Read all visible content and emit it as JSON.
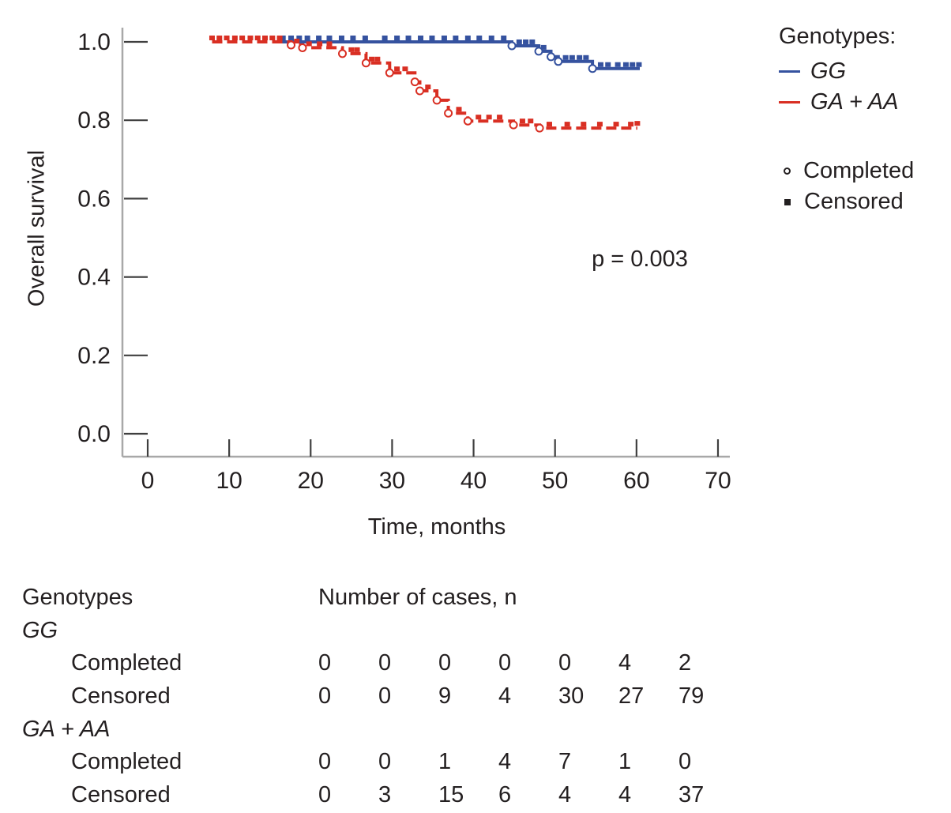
{
  "chart_data": {
    "type": "line",
    "subtype": "kaplan-meier-step",
    "xlabel": "Time, months",
    "ylabel": "Overall survival",
    "annotation": "p = 0.003",
    "xlim": [
      0,
      70
    ],
    "ylim": [
      0.0,
      1.0
    ],
    "xticks": [
      0,
      10,
      20,
      30,
      40,
      50,
      60,
      70
    ],
    "yticks": [
      0.0,
      0.2,
      0.4,
      0.6,
      0.8,
      1.0
    ],
    "grid": false,
    "legend_position": "right",
    "axis_color": "#a8a8a8",
    "tick_color": "#3f3f3f",
    "text_color": "#231f20",
    "series": [
      {
        "name": "GG",
        "color": "#35529f",
        "line": "solid",
        "points": [
          [
            16.1,
            1.0
          ],
          [
            44.7,
            1.0
          ],
          [
            44.7,
            0.99
          ],
          [
            48.0,
            0.99
          ],
          [
            48.0,
            0.976
          ],
          [
            49.5,
            0.976
          ],
          [
            49.5,
            0.962
          ],
          [
            50.4,
            0.962
          ],
          [
            50.4,
            0.95
          ],
          [
            54.6,
            0.95
          ],
          [
            54.6,
            0.932
          ],
          [
            60.4,
            0.932
          ]
        ],
        "censored_marks": [
          [
            16.6,
            1.0
          ],
          [
            17.6,
            1.0
          ],
          [
            18.6,
            1.0
          ],
          [
            19.6,
            1.0
          ],
          [
            21.0,
            1.0
          ],
          [
            22.3,
            1.0
          ],
          [
            23.8,
            1.0
          ],
          [
            25.2,
            1.0
          ],
          [
            26.7,
            1.0
          ],
          [
            29.1,
            1.0
          ],
          [
            30.6,
            1.0
          ],
          [
            32.0,
            1.0
          ],
          [
            33.5,
            1.0
          ],
          [
            34.9,
            1.0
          ],
          [
            36.4,
            1.0
          ],
          [
            37.8,
            1.0
          ],
          [
            39.3,
            1.0
          ],
          [
            40.7,
            1.0
          ],
          [
            42.2,
            1.0
          ],
          [
            43.7,
            1.0
          ],
          [
            45.6,
            0.99
          ],
          [
            46.4,
            0.99
          ],
          [
            47.2,
            0.99
          ],
          [
            48.6,
            0.976
          ],
          [
            51.3,
            0.95
          ],
          [
            52.1,
            0.95
          ],
          [
            53.0,
            0.95
          ],
          [
            53.8,
            0.95
          ],
          [
            55.6,
            0.932
          ],
          [
            56.5,
            0.932
          ],
          [
            57.7,
            0.932
          ],
          [
            58.7,
            0.932
          ],
          [
            59.5,
            0.932
          ],
          [
            60.3,
            0.932
          ]
        ],
        "completed_marks": [
          [
            44.7,
            0.99
          ],
          [
            48.0,
            0.976
          ],
          [
            49.5,
            0.962
          ],
          [
            50.4,
            0.95
          ],
          [
            54.6,
            0.932
          ]
        ]
      },
      {
        "name": "GA + AA",
        "color": "#d92f23",
        "line": "dashed",
        "points": [
          [
            7.9,
            1.0
          ],
          [
            17.6,
            1.0
          ],
          [
            17.6,
            0.992
          ],
          [
            19.0,
            0.992
          ],
          [
            19.0,
            0.985
          ],
          [
            23.9,
            0.985
          ],
          [
            23.9,
            0.97
          ],
          [
            26.8,
            0.97
          ],
          [
            26.8,
            0.946
          ],
          [
            29.7,
            0.946
          ],
          [
            29.7,
            0.921
          ],
          [
            32.8,
            0.921
          ],
          [
            32.8,
            0.898
          ],
          [
            33.4,
            0.898
          ],
          [
            33.4,
            0.875
          ],
          [
            35.5,
            0.875
          ],
          [
            35.5,
            0.851
          ],
          [
            36.9,
            0.851
          ],
          [
            36.9,
            0.818
          ],
          [
            39.3,
            0.818
          ],
          [
            39.3,
            0.798
          ],
          [
            44.9,
            0.798
          ],
          [
            44.9,
            0.788
          ],
          [
            48.1,
            0.788
          ],
          [
            48.1,
            0.78
          ],
          [
            60.1,
            0.78
          ]
        ],
        "censored_marks": [
          [
            7.9,
            1.0
          ],
          [
            8.8,
            1.0
          ],
          [
            9.7,
            1.0
          ],
          [
            10.7,
            1.0
          ],
          [
            11.6,
            1.0
          ],
          [
            12.6,
            1.0
          ],
          [
            13.5,
            1.0
          ],
          [
            14.4,
            1.0
          ],
          [
            15.3,
            1.0
          ],
          [
            16.2,
            1.0
          ],
          [
            18.3,
            0.992
          ],
          [
            19.8,
            0.985
          ],
          [
            21.1,
            0.985
          ],
          [
            22.3,
            0.985
          ],
          [
            25.0,
            0.97
          ],
          [
            25.7,
            0.97
          ],
          [
            27.5,
            0.946
          ],
          [
            28.2,
            0.946
          ],
          [
            30.6,
            0.921
          ],
          [
            31.6,
            0.921
          ],
          [
            34.4,
            0.875
          ],
          [
            38.2,
            0.818
          ],
          [
            40.6,
            0.798
          ],
          [
            41.9,
            0.798
          ],
          [
            43.2,
            0.798
          ],
          [
            46.0,
            0.788
          ],
          [
            47.0,
            0.788
          ],
          [
            49.3,
            0.78
          ],
          [
            51.5,
            0.78
          ],
          [
            53.5,
            0.78
          ],
          [
            55.5,
            0.78
          ],
          [
            57.5,
            0.78
          ],
          [
            59.3,
            0.78
          ],
          [
            60.1,
            0.782
          ]
        ],
        "completed_marks": [
          [
            17.6,
            0.992
          ],
          [
            19.0,
            0.985
          ],
          [
            23.9,
            0.97
          ],
          [
            26.8,
            0.946
          ],
          [
            29.7,
            0.921
          ],
          [
            32.8,
            0.898
          ],
          [
            33.4,
            0.875
          ],
          [
            35.5,
            0.851
          ],
          [
            36.9,
            0.818
          ],
          [
            39.3,
            0.798
          ],
          [
            44.9,
            0.788
          ],
          [
            48.1,
            0.78
          ]
        ]
      }
    ]
  },
  "legend": {
    "title": "Genotypes:",
    "series": [
      {
        "label": "GG",
        "color": "#35529f"
      },
      {
        "label": "GA + AA",
        "color": "#d92f23"
      }
    ],
    "markers": [
      {
        "label": "Completed",
        "shape": "open-circle"
      },
      {
        "label": "Censored",
        "shape": "filled-square"
      }
    ]
  },
  "table": {
    "genotypes_header": "Genotypes",
    "cases_header": "Number of cases, n",
    "groups": [
      {
        "name": "GG",
        "rows": [
          {
            "label": "Completed",
            "values": [
              "0",
              "0",
              "0",
              "0",
              "0",
              "4",
              "2"
            ]
          },
          {
            "label": "Censored",
            "values": [
              "0",
              "0",
              "9",
              "4",
              "30",
              "27",
              "79"
            ]
          }
        ]
      },
      {
        "name": "GA + AA",
        "rows": [
          {
            "label": "Completed",
            "values": [
              "0",
              "0",
              "1",
              "4",
              "7",
              "1",
              "0"
            ]
          },
          {
            "label": "Censored",
            "values": [
              "0",
              "3",
              "15",
              "6",
              "4",
              "4",
              "37"
            ]
          }
        ]
      }
    ]
  }
}
